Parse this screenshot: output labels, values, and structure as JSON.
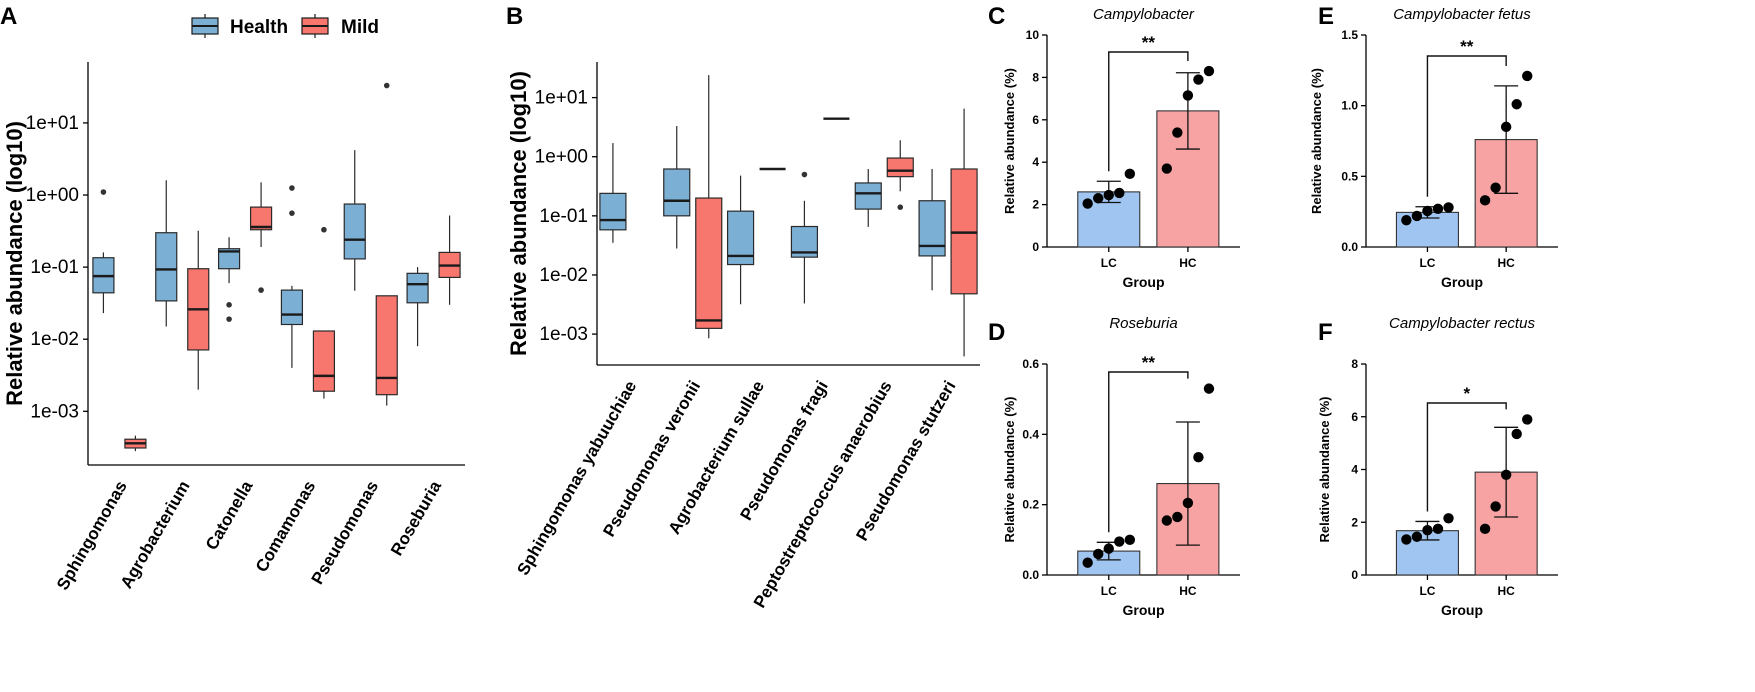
{
  "colors": {
    "health": "#7bafd4",
    "mild": "#f7776f",
    "lc": "#9fc5f0",
    "hc": "#f7a3a3",
    "dark": "#1a1a1a"
  },
  "chart_data": [
    {
      "panel": "A",
      "type": "box",
      "ylabel": "Relative abundance (log10)",
      "yscale": "log",
      "ylim": [
        0.00018,
        70
      ],
      "yticks": [
        0.001,
        0.01,
        0.1,
        1,
        10
      ],
      "ytick_labels": [
        "1e-03",
        "1e-02",
        "1e-01",
        "1e+00",
        "1e+01"
      ],
      "legend": [
        {
          "name": "Health",
          "color_key": "health"
        },
        {
          "name": "Mild",
          "color_key": "mild"
        }
      ],
      "categories": [
        "Sphingomonas",
        "Agrobacterium",
        "Catonella",
        "Comamonas",
        "Pseudomonas",
        "Roseburia"
      ],
      "series": [
        {
          "name": "Health",
          "color_key": "health",
          "boxes": [
            {
              "whisker_low": 0.023,
              "q1": 0.044,
              "median": 0.075,
              "q3": 0.135,
              "whisker_high": 0.16,
              "outliers": [
                1.1
              ]
            },
            {
              "whisker_low": 0.015,
              "q1": 0.034,
              "median": 0.093,
              "q3": 0.3,
              "whisker_high": 1.6,
              "outliers": []
            },
            {
              "whisker_low": 0.06,
              "q1": 0.095,
              "median": 0.165,
              "q3": 0.18,
              "whisker_high": 0.26,
              "outliers": [
                0.03,
                0.019
              ]
            },
            {
              "whisker_low": 0.004,
              "q1": 0.016,
              "median": 0.022,
              "q3": 0.048,
              "whisker_high": 0.055,
              "outliers": [
                1.25,
                0.56
              ]
            },
            {
              "whisker_low": 0.047,
              "q1": 0.13,
              "median": 0.24,
              "q3": 0.75,
              "whisker_high": 4.2,
              "outliers": []
            },
            {
              "whisker_low": 0.008,
              "q1": 0.032,
              "median": 0.058,
              "q3": 0.082,
              "whisker_high": 0.1,
              "outliers": []
            }
          ]
        },
        {
          "name": "Mild",
          "color_key": "mild",
          "boxes": [
            {
              "whisker_low": 0.00028,
              "q1": 0.00031,
              "median": 0.00036,
              "q3": 0.00041,
              "whisker_high": 0.00046,
              "outliers": []
            },
            {
              "whisker_low": 0.002,
              "q1": 0.0071,
              "median": 0.026,
              "q3": 0.095,
              "whisker_high": 0.32,
              "outliers": []
            },
            {
              "whisker_low": 0.19,
              "q1": 0.33,
              "median": 0.36,
              "q3": 0.68,
              "whisker_high": 1.5,
              "outliers": [
                0.048
              ]
            },
            {
              "whisker_low": 0.0015,
              "q1": 0.0019,
              "median": 0.0031,
              "q3": 0.013,
              "whisker_high": 0.013,
              "outliers": [
                0.33
              ]
            },
            {
              "whisker_low": 0.0012,
              "q1": 0.0017,
              "median": 0.0029,
              "q3": 0.04,
              "whisker_high": 0.04,
              "outliers": [
                33
              ]
            },
            {
              "whisker_low": 0.03,
              "q1": 0.072,
              "median": 0.105,
              "q3": 0.16,
              "whisker_high": 0.52,
              "outliers": []
            }
          ]
        }
      ]
    },
    {
      "panel": "B",
      "type": "box",
      "ylabel": "Relative abundance (log10)",
      "yscale": "log",
      "ylim": [
        0.0003,
        40
      ],
      "yticks": [
        0.001,
        0.01,
        0.1,
        1,
        10
      ],
      "ytick_labels": [
        "1e-03",
        "1e-02",
        "1e-01",
        "1e+00",
        "1e+01"
      ],
      "categories": [
        "Sphingomonas yabuuchiae",
        "Pseudomonas veronii",
        "Agrobacterium sullae",
        "Pseudomonas fragi",
        "Peptostreptococcus anaerobius",
        "Pseudomonas stutzeri"
      ],
      "series": [
        {
          "name": "Health",
          "color_key": "health",
          "boxes": [
            {
              "whisker_low": 0.035,
              "q1": 0.058,
              "median": 0.085,
              "q3": 0.24,
              "whisker_high": 1.7,
              "outliers": []
            },
            {
              "whisker_low": 0.028,
              "q1": 0.1,
              "median": 0.18,
              "q3": 0.62,
              "whisker_high": 3.3,
              "outliers": []
            },
            {
              "whisker_low": 0.0032,
              "q1": 0.015,
              "median": 0.021,
              "q3": 0.12,
              "whisker_high": 0.48,
              "outliers": []
            },
            {
              "whisker_low": 0.0033,
              "q1": 0.02,
              "median": 0.024,
              "q3": 0.066,
              "whisker_high": 0.18,
              "outliers": [
                0.5
              ]
            },
            {
              "whisker_low": 0.065,
              "q1": 0.13,
              "median": 0.24,
              "q3": 0.36,
              "whisker_high": 0.62,
              "outliers": []
            },
            {
              "whisker_low": 0.0055,
              "q1": 0.021,
              "median": 0.031,
              "q3": 0.18,
              "whisker_high": 0.62,
              "outliers": []
            }
          ]
        },
        {
          "name": "Mild",
          "color_key": "mild",
          "boxes": [
            null,
            {
              "whisker_low": 0.00085,
              "q1": 0.00125,
              "median": 0.0017,
              "q3": 0.2,
              "whisker_high": 24,
              "outliers": []
            },
            {
              "whisker_low": 0.62,
              "q1": 0.62,
              "median": 0.62,
              "q3": 0.62,
              "whisker_high": 0.62,
              "outliers": []
            },
            {
              "whisker_low": 4.4,
              "q1": 4.4,
              "median": 4.4,
              "q3": 4.4,
              "whisker_high": 4.4,
              "outliers": []
            },
            {
              "whisker_low": 0.26,
              "q1": 0.46,
              "median": 0.58,
              "q3": 0.95,
              "whisker_high": 1.9,
              "outliers": [
                0.14
              ]
            },
            {
              "whisker_low": 0.00042,
              "q1": 0.0048,
              "median": 0.052,
              "q3": 0.62,
              "whisker_high": 6.5,
              "outliers": []
            }
          ]
        }
      ]
    },
    {
      "panel": "C",
      "type": "bar",
      "title": "Campylobacter",
      "xlabel": "Group",
      "ylabel": "Relative abundance (%)",
      "ylim": [
        0,
        10
      ],
      "yticks": [
        0,
        2,
        4,
        6,
        8,
        10
      ],
      "ytick_labels": [
        "0",
        "2",
        "4",
        "6",
        "8",
        "10"
      ],
      "categories": [
        "LC",
        "HC"
      ],
      "bars": [
        {
          "name": "LC",
          "mean": 2.6,
          "sd": 0.5,
          "points": [
            2.05,
            2.3,
            2.45,
            2.55,
            3.45
          ],
          "color_key": "lc"
        },
        {
          "name": "HC",
          "mean": 6.42,
          "sd": 1.8,
          "points": [
            3.7,
            5.4,
            7.15,
            7.9,
            8.3
          ],
          "color_key": "hc"
        }
      ],
      "significance": "**"
    },
    {
      "panel": "D",
      "type": "bar",
      "title": "Roseburia",
      "xlabel": "Group",
      "ylabel": "Relative abundance (%)",
      "ylim": [
        0,
        0.6
      ],
      "yticks": [
        0,
        0.2,
        0.4,
        0.6
      ],
      "ytick_labels": [
        "0.0",
        "0.2",
        "0.4",
        "0.6"
      ],
      "categories": [
        "LC",
        "HC"
      ],
      "bars": [
        {
          "name": "LC",
          "mean": 0.068,
          "sd": 0.025,
          "points": [
            0.035,
            0.06,
            0.075,
            0.095,
            0.1
          ],
          "color_key": "lc"
        },
        {
          "name": "HC",
          "mean": 0.26,
          "sd": 0.175,
          "points": [
            0.155,
            0.165,
            0.205,
            0.335,
            0.53
          ],
          "color_key": "hc"
        }
      ],
      "significance": "**"
    },
    {
      "panel": "E",
      "type": "bar",
      "title": "Campylobacter fetus",
      "xlabel": "Group",
      "ylabel": "Relative abundance (%)",
      "ylim": [
        0,
        1.5
      ],
      "yticks": [
        0,
        0.5,
        1,
        1.5
      ],
      "ytick_labels": [
        "0.0",
        "0.5",
        "1.0",
        "1.5"
      ],
      "categories": [
        "LC",
        "HC"
      ],
      "bars": [
        {
          "name": "LC",
          "mean": 0.245,
          "sd": 0.04,
          "points": [
            0.19,
            0.22,
            0.255,
            0.27,
            0.28
          ],
          "color_key": "lc"
        },
        {
          "name": "HC",
          "mean": 0.76,
          "sd": 0.38,
          "points": [
            0.33,
            0.42,
            0.85,
            1.01,
            1.21
          ],
          "color_key": "hc"
        }
      ],
      "significance": "**"
    },
    {
      "panel": "F",
      "type": "bar",
      "title": "Campylobacter rectus",
      "xlabel": "Group",
      "ylabel": "Relative abundance (%)",
      "ylim": [
        0,
        8
      ],
      "yticks": [
        0,
        2,
        4,
        6,
        8
      ],
      "ytick_labels": [
        "0",
        "2",
        "4",
        "6",
        "8"
      ],
      "categories": [
        "LC",
        "HC"
      ],
      "bars": [
        {
          "name": "LC",
          "mean": 1.68,
          "sd": 0.35,
          "points": [
            1.35,
            1.45,
            1.7,
            1.75,
            2.15
          ],
          "color_key": "lc"
        },
        {
          "name": "HC",
          "mean": 3.9,
          "sd": 1.7,
          "points": [
            1.75,
            2.6,
            3.8,
            5.35,
            5.9
          ],
          "color_key": "hc"
        }
      ],
      "significance": "*"
    }
  ]
}
